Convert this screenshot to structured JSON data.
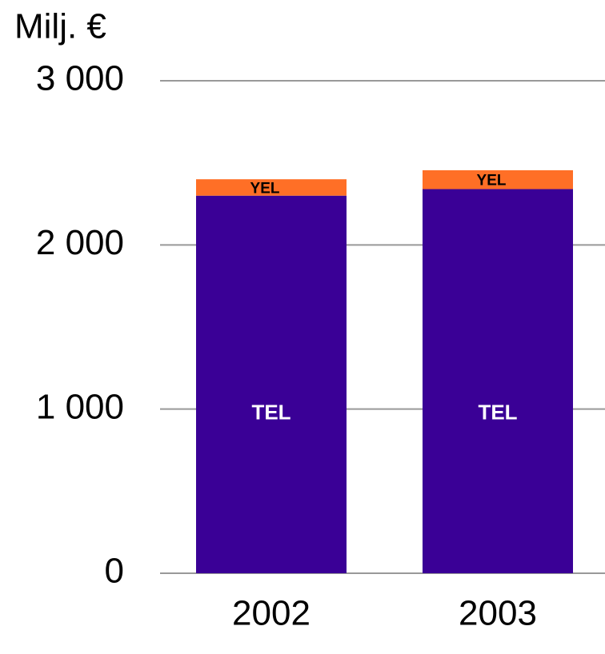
{
  "chart_data": {
    "type": "stacked_bar",
    "y_label": "Milj. €",
    "categories": [
      "2002",
      "2003"
    ],
    "series": [
      {
        "name": "TEL",
        "color": "#3a0096",
        "values": [
          2300,
          2340
        ]
      },
      {
        "name": "YEL",
        "color": "#ff6f26",
        "values": [
          100,
          115
        ]
      }
    ],
    "ylim": [
      0,
      3000
    ],
    "yticks": [
      0,
      {
        "value": 1000,
        "label": "1 000"
      },
      {
        "value": 2000,
        "label": "2 000"
      },
      {
        "value": 3000,
        "label": "3 000"
      }
    ],
    "grid": true
  }
}
